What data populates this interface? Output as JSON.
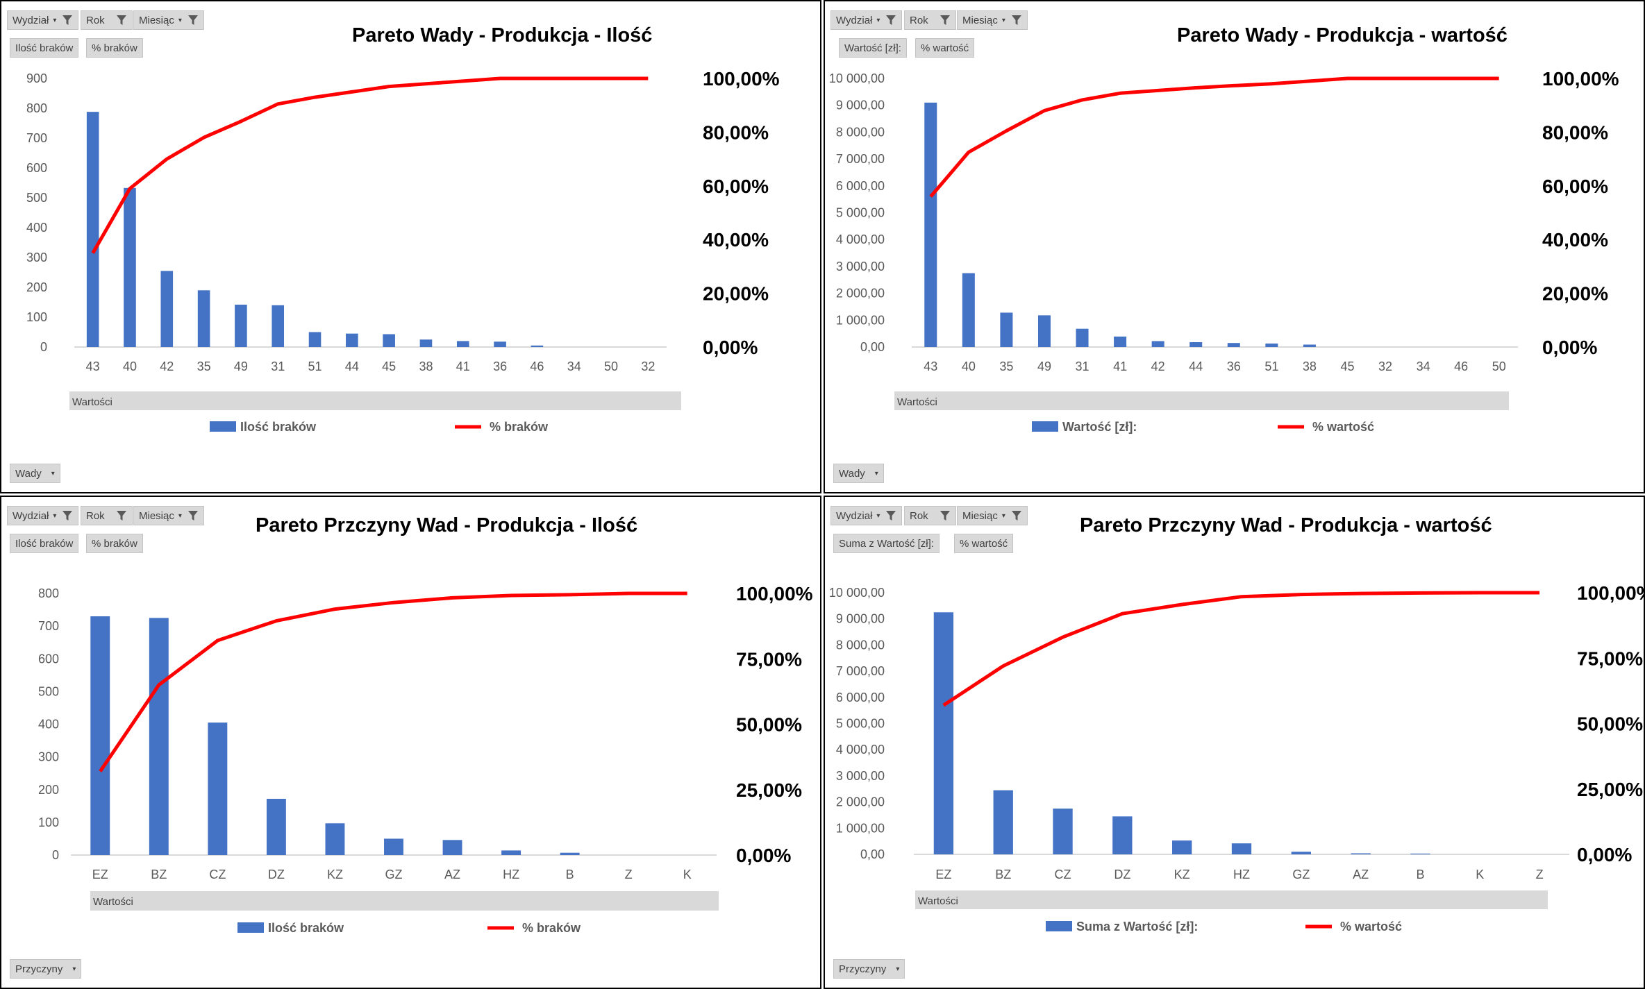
{
  "filters": {
    "wydzial": "Wydział",
    "rok": "Rok",
    "miesiac": "Miesiąc"
  },
  "values_bar_label": "Wartości",
  "colors": {
    "bar": "#4472c4",
    "line": "#ff0000",
    "grid": "#d9d9d9",
    "button": "#d9d9d9"
  },
  "icons": {
    "filter": "funnel-icon",
    "dropdown": "dropdown-arrow-icon"
  },
  "panels": [
    {
      "id": "tl",
      "title": "Pareto Wady - Produkcja - Ilość",
      "value_buttons": [
        "Ilość braków",
        "% braków"
      ],
      "axis_button": "Wady",
      "legend": {
        "bar": "Ilość braków",
        "line": "% braków"
      }
    },
    {
      "id": "tr",
      "title": "Pareto Wady - Produkcja - wartość",
      "value_buttons": [
        "Wartość [zł]:",
        "% wartość"
      ],
      "axis_button": "Wady",
      "legend": {
        "bar": "Wartość [zł]:",
        "line": "% wartość"
      }
    },
    {
      "id": "bl",
      "title": "Pareto Przczyny Wad - Produkcja - Ilość",
      "value_buttons": [
        "Ilość braków",
        "% braków"
      ],
      "axis_button": "Przyczyny",
      "legend": {
        "bar": "Ilość braków",
        "line": "% braków"
      }
    },
    {
      "id": "br",
      "title": "Pareto Przczyny Wad - Produkcja - wartość",
      "value_buttons": [
        "Suma z Wartość [zł]:",
        "% wartość"
      ],
      "axis_button": "Przyczyny",
      "legend": {
        "bar": "Suma z Wartość [zł]:",
        "line": "% wartość"
      }
    }
  ],
  "chart_data": [
    {
      "type": "bar",
      "title": "Pareto Wady - Produkcja - Ilość",
      "categories": [
        "43",
        "40",
        "42",
        "35",
        "49",
        "31",
        "51",
        "44",
        "45",
        "38",
        "41",
        "36",
        "46",
        "34",
        "50",
        "32"
      ],
      "series": [
        {
          "name": "Ilość braków",
          "type": "bar",
          "axis": "left",
          "values": [
            788,
            533,
            255,
            190,
            142,
            140,
            50,
            45,
            43,
            25,
            20,
            18,
            5,
            0,
            0,
            0
          ]
        },
        {
          "name": "% braków",
          "type": "line",
          "axis": "right",
          "values": [
            35,
            59,
            70,
            78,
            84,
            90.5,
            93,
            95,
            97,
            98,
            99,
            100,
            100,
            100,
            100,
            100
          ]
        }
      ],
      "y_ticks": [
        "0",
        "100",
        "200",
        "300",
        "400",
        "500",
        "600",
        "700",
        "800",
        "900"
      ],
      "ylim": [
        0,
        900
      ],
      "y2_ticks": [
        "0,00%",
        "20,00%",
        "40,00%",
        "60,00%",
        "80,00%",
        "100,00%"
      ],
      "y2lim": [
        0,
        100
      ]
    },
    {
      "type": "bar",
      "title": "Pareto Wady - Produkcja - wartość",
      "categories": [
        "43",
        "40",
        "35",
        "49",
        "31",
        "41",
        "42",
        "44",
        "36",
        "51",
        "38",
        "45",
        "32",
        "34",
        "46",
        "50"
      ],
      "series": [
        {
          "name": "Wartość [zł]:",
          "type": "bar",
          "axis": "left",
          "values": [
            9100,
            2750,
            1280,
            1180,
            680,
            390,
            220,
            180,
            150,
            130,
            90,
            0,
            0,
            0,
            0,
            0
          ]
        },
        {
          "name": "% wartość",
          "type": "line",
          "axis": "right",
          "values": [
            56,
            72.5,
            80.5,
            88,
            92,
            94.5,
            95.5,
            96.5,
            97.3,
            98,
            99,
            100,
            100,
            100,
            100,
            100
          ]
        }
      ],
      "y_ticks": [
        "0,00",
        "1 000,00",
        "2 000,00",
        "3 000,00",
        "4 000,00",
        "5 000,00",
        "6 000,00",
        "7 000,00",
        "8 000,00",
        "9 000,00",
        "10 000,00"
      ],
      "ylim": [
        0,
        10000
      ],
      "y2_ticks": [
        "0,00%",
        "20,00%",
        "40,00%",
        "60,00%",
        "80,00%",
        "100,00%"
      ],
      "y2lim": [
        0,
        100
      ]
    },
    {
      "type": "bar",
      "title": "Pareto Przczyny Wad - Produkcja - Ilość",
      "categories": [
        "EZ",
        "BZ",
        "CZ",
        "DZ",
        "KZ",
        "GZ",
        "AZ",
        "HZ",
        "B",
        "Z",
        "K"
      ],
      "series": [
        {
          "name": "Ilość braków",
          "type": "bar",
          "axis": "left",
          "values": [
            730,
            725,
            405,
            172,
            97,
            50,
            46,
            14,
            7,
            0,
            0
          ]
        },
        {
          "name": "% braków",
          "type": "line",
          "axis": "right",
          "values": [
            32,
            65,
            82,
            89.5,
            94,
            96.5,
            98.3,
            99.2,
            99.5,
            100,
            100
          ]
        }
      ],
      "y_ticks": [
        "0",
        "100",
        "200",
        "300",
        "400",
        "500",
        "600",
        "700",
        "800"
      ],
      "ylim": [
        0,
        800
      ],
      "y2_ticks": [
        "0,00%",
        "25,00%",
        "50,00%",
        "75,00%",
        "100,00%"
      ],
      "y2lim": [
        0,
        100
      ]
    },
    {
      "type": "bar",
      "title": "Pareto Przczyny Wad - Produkcja - wartość",
      "categories": [
        "EZ",
        "BZ",
        "CZ",
        "DZ",
        "KZ",
        "HZ",
        "GZ",
        "AZ",
        "B",
        "K",
        "Z"
      ],
      "series": [
        {
          "name": "Suma z Wartość [zł]:",
          "type": "bar",
          "axis": "left",
          "values": [
            9250,
            2450,
            1750,
            1450,
            530,
            420,
            100,
            40,
            30,
            0,
            0
          ]
        },
        {
          "name": "% wartość",
          "type": "line",
          "axis": "right",
          "values": [
            57,
            72,
            83,
            92,
            95.5,
            98.5,
            99.3,
            99.7,
            99.9,
            100,
            100
          ]
        }
      ],
      "y_ticks": [
        "0,00",
        "1 000,00",
        "2 000,00",
        "3 000,00",
        "4 000,00",
        "5 000,00",
        "6 000,00",
        "7 000,00",
        "8 000,00",
        "9 000,00",
        "10 000,00"
      ],
      "ylim": [
        0,
        10000
      ],
      "y2_ticks": [
        "0,00%",
        "25,00%",
        "50,00%",
        "75,00%",
        "100,00%"
      ],
      "y2lim": [
        0,
        100
      ]
    }
  ]
}
